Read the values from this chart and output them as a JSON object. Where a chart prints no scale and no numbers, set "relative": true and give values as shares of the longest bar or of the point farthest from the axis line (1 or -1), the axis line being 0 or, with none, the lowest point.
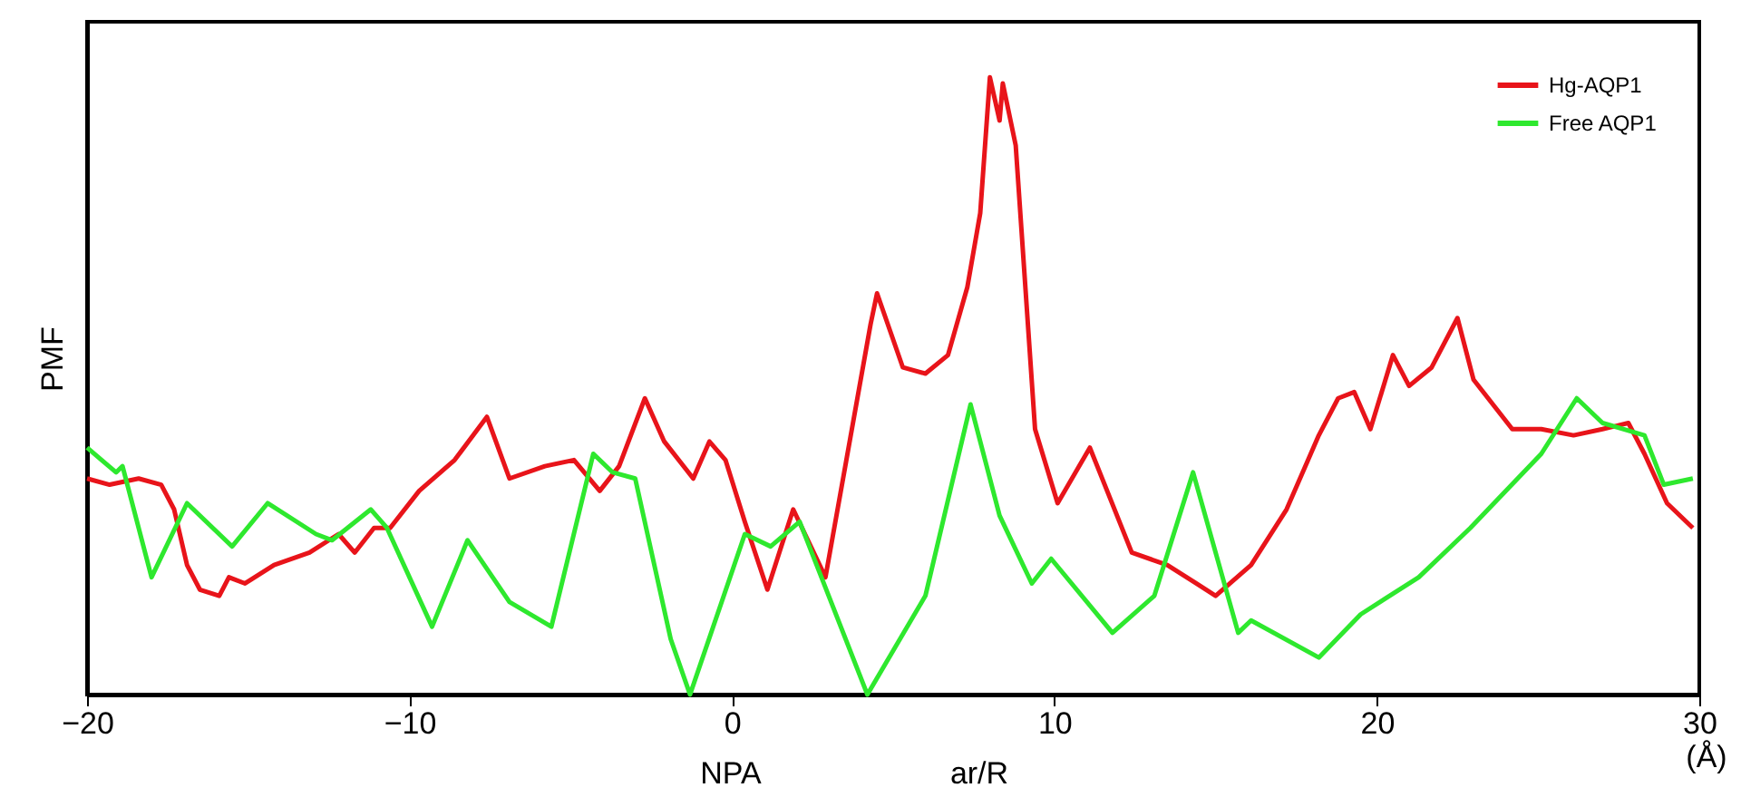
{
  "chart_data": {
    "type": "line",
    "relative": true,
    "ylabel": "PMF",
    "xlabel": "(Å)",
    "legend": "top right",
    "grid": false,
    "xlim": [
      -20,
      30
    ],
    "xticks": [
      -20,
      -10,
      0,
      10,
      20,
      30
    ],
    "annotations": [
      "NPA",
      "ar/R"
    ],
    "series": [
      {
        "name": "Hg-AQP1",
        "color": "#e8141a",
        "x": [
          -20,
          -19.3,
          -18.4,
          -17.7,
          -17.3,
          -16.9,
          -16.5,
          -15.9,
          -15.6,
          -15.1,
          -14.2,
          -13.1,
          -12.2,
          -11.7,
          -11.1,
          -10.6,
          -9.7,
          -8.6,
          -7.6,
          -6.9,
          -5.8,
          -4.9,
          -4.1,
          -3.5,
          -2.7,
          -2.1,
          -1.2,
          -0.7,
          -0.2,
          0.4,
          1.1,
          1.9,
          2.9,
          4.3,
          4.5,
          5.3,
          6.0,
          6.7,
          7.3,
          7.7,
          8.0,
          8.3,
          8.4,
          8.8,
          9.4,
          10.1,
          11.1,
          12.4,
          13.5,
          14.4,
          15.0,
          16.1,
          17.2,
          18.2,
          18.8,
          19.3,
          19.8,
          20.5,
          21.0,
          21.7,
          22.5,
          23.0,
          24.2,
          25.1,
          26.1,
          27.0,
          27.8,
          28.3,
          29.0,
          29.8
        ],
        "values": [
          0.35,
          0.34,
          0.35,
          0.34,
          0.3,
          0.21,
          0.17,
          0.16,
          0.19,
          0.18,
          0.21,
          0.23,
          0.26,
          0.23,
          0.27,
          0.27,
          0.33,
          0.38,
          0.45,
          0.35,
          0.37,
          0.38,
          0.33,
          0.37,
          0.48,
          0.41,
          0.35,
          0.41,
          0.38,
          0.28,
          0.17,
          0.3,
          0.19,
          0.6,
          0.65,
          0.53,
          0.52,
          0.55,
          0.66,
          0.78,
          1,
          0.93,
          0.99,
          0.89,
          0.43,
          0.31,
          0.4,
          0.23,
          0.21,
          0.18,
          0.16,
          0.21,
          0.3,
          0.42,
          0.48,
          0.49,
          0.43,
          0.55,
          0.5,
          0.53,
          0.61,
          0.51,
          0.43,
          0.43,
          0.42,
          0.43,
          0.44,
          0.39,
          0.31,
          0.27
        ]
      },
      {
        "name": "Free AQP1",
        "color": "#2ee82e",
        "x": [
          -20,
          -19.1,
          -18.9,
          -18.0,
          -16.9,
          -15.5,
          -14.4,
          -12.9,
          -12.4,
          -11.2,
          -10.7,
          -9.3,
          -8.2,
          -6.9,
          -5.6,
          -4.3,
          -3.7,
          -3.0,
          -1.9,
          -1.3,
          0.4,
          1.2,
          2.1,
          4.2,
          6.0,
          7.4,
          8.3,
          9.3,
          9.9,
          11.8,
          13.1,
          14.3,
          15.7,
          16.1,
          18.2,
          19.5,
          21.3,
          22.9,
          25.1,
          26.2,
          27.0,
          28.3,
          28.9,
          29.8
        ],
        "values": [
          0.4,
          0.36,
          0.37,
          0.19,
          0.31,
          0.24,
          0.31,
          0.26,
          0.25,
          0.3,
          0.27,
          0.11,
          0.25,
          0.15,
          0.11,
          0.39,
          0.36,
          0.35,
          0.09,
          0,
          0.26,
          0.24,
          0.28,
          0,
          0.16,
          0.47,
          0.29,
          0.18,
          0.22,
          0.1,
          0.16,
          0.36,
          0.1,
          0.12,
          0.06,
          0.13,
          0.19,
          0.27,
          0.39,
          0.48,
          0.44,
          0.42,
          0.34,
          0.35
        ]
      }
    ]
  }
}
